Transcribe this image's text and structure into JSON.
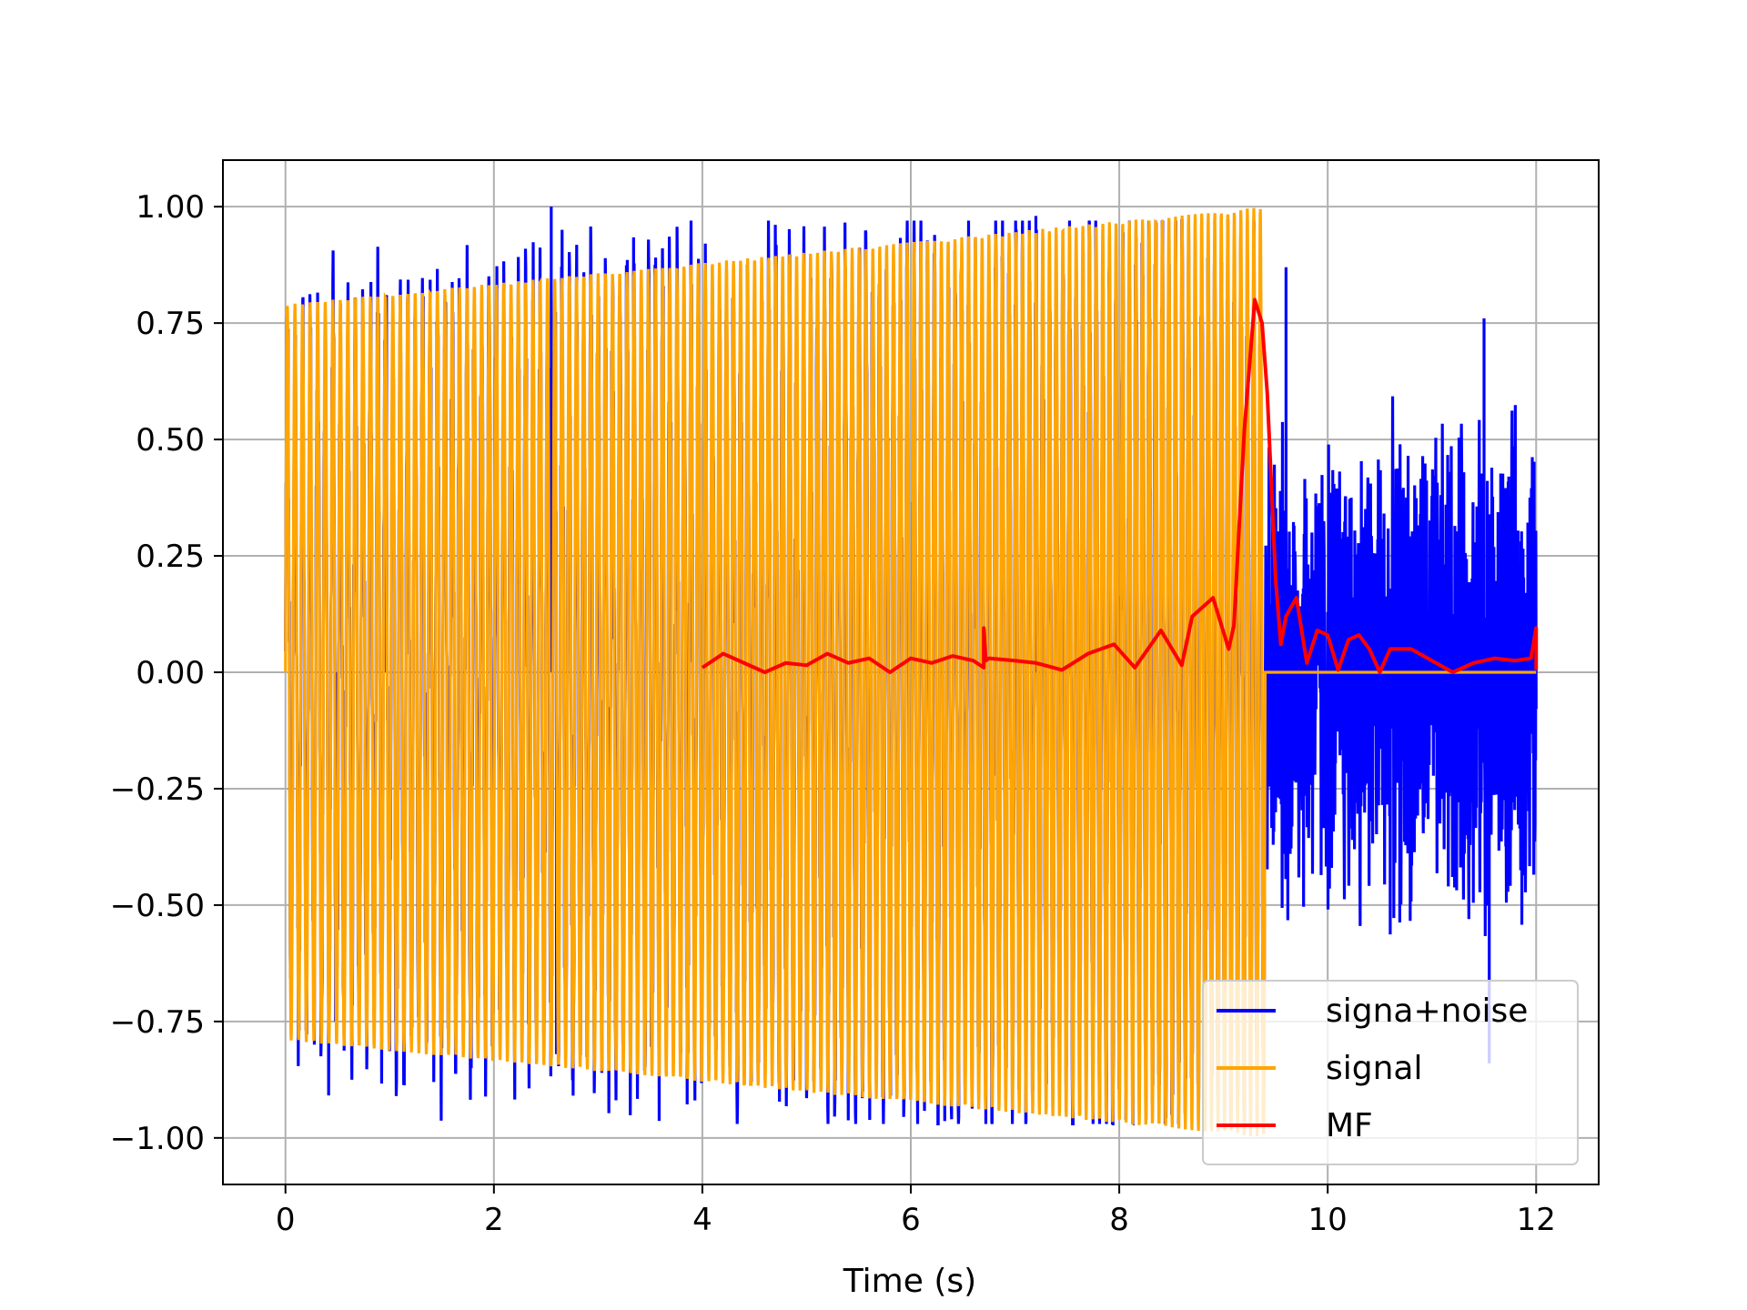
{
  "chart_data": {
    "type": "line",
    "title": "",
    "xlabel": "Time (s)",
    "ylabel": "",
    "xlim": [
      -0.6,
      12.6
    ],
    "ylim": [
      -1.1,
      1.1
    ],
    "xticks": [
      0,
      2,
      4,
      6,
      8,
      10,
      12
    ],
    "xtick_labels": [
      "0",
      "2",
      "4",
      "6",
      "8",
      "10",
      "12"
    ],
    "yticks": [
      1.0,
      0.75,
      0.5,
      0.25,
      0.0,
      -0.25,
      -0.5,
      -0.75,
      -1.0
    ],
    "ytick_labels": [
      "1.00",
      "0.75",
      "0.50",
      "0.25",
      "0.00",
      "−0.25",
      "−0.50",
      "−0.75",
      "−1.00"
    ],
    "grid": true,
    "legend_position": "lower-right",
    "series": [
      {
        "name": "signa+noise",
        "color": "#0000ff",
        "description": "chirp signal plus random noise from t=0 to t=12; noise-only after t=9.4",
        "t_start": 0,
        "t_end": 12,
        "amp_start": 0.79,
        "amp_end": 1.0,
        "chirp_end": 9.4,
        "noise_amplitude": 0.6,
        "spikes": [
          [
            0.97,
            0.81
          ],
          [
            2.55,
            1.0
          ],
          [
            7.2,
            0.98
          ],
          [
            2.6,
            -0.82
          ],
          [
            0.48,
            -0.75
          ],
          [
            11.55,
            -0.84
          ],
          [
            11.5,
            0.76
          ],
          [
            9.6,
            0.87
          ]
        ]
      },
      {
        "name": "signal",
        "color": "#ffa500",
        "description": "linear-amplitude chirp from 0.79 to 1.0 between t=0 and t=9.4, then zero",
        "t_start": 0,
        "t_end": 12,
        "amp_start": 0.79,
        "amp_end": 1.0,
        "chirp_end": 9.4,
        "cycles": 140
      },
      {
        "name": "MF",
        "color": "#ff0000",
        "description": "matched filter output",
        "x": [
          4.0,
          4.2,
          4.4,
          4.6,
          4.8,
          5.0,
          5.2,
          5.4,
          5.6,
          5.8,
          6.0,
          6.2,
          6.4,
          6.6,
          6.7,
          6.7,
          6.72,
          6.75,
          7.0,
          7.2,
          7.45,
          7.7,
          7.95,
          8.15,
          8.4,
          8.6,
          8.7,
          8.9,
          9.05,
          9.1,
          9.2,
          9.3,
          9.37,
          9.42,
          9.5,
          9.55,
          9.6,
          9.7,
          9.8,
          9.9,
          10.0,
          10.1,
          10.2,
          10.3,
          10.4,
          10.5,
          10.6,
          10.8,
          11.0,
          11.2,
          11.4,
          11.6,
          11.8,
          11.95,
          12.0,
          12.0
        ],
        "y": [
          0.01,
          0.04,
          0.02,
          0.0,
          0.02,
          0.015,
          0.04,
          0.02,
          0.03,
          0.0,
          0.03,
          0.02,
          0.035,
          0.025,
          0.01,
          0.095,
          0.025,
          0.03,
          0.025,
          0.02,
          0.005,
          0.04,
          0.06,
          0.01,
          0.09,
          0.015,
          0.12,
          0.16,
          0.05,
          0.1,
          0.52,
          0.8,
          0.75,
          0.6,
          0.2,
          0.06,
          0.12,
          0.16,
          0.02,
          0.09,
          0.08,
          0.005,
          0.07,
          0.08,
          0.05,
          0.0,
          0.05,
          0.05,
          0.025,
          0.0,
          0.02,
          0.03,
          0.025,
          0.03,
          0.095,
          0.005
        ]
      }
    ]
  }
}
